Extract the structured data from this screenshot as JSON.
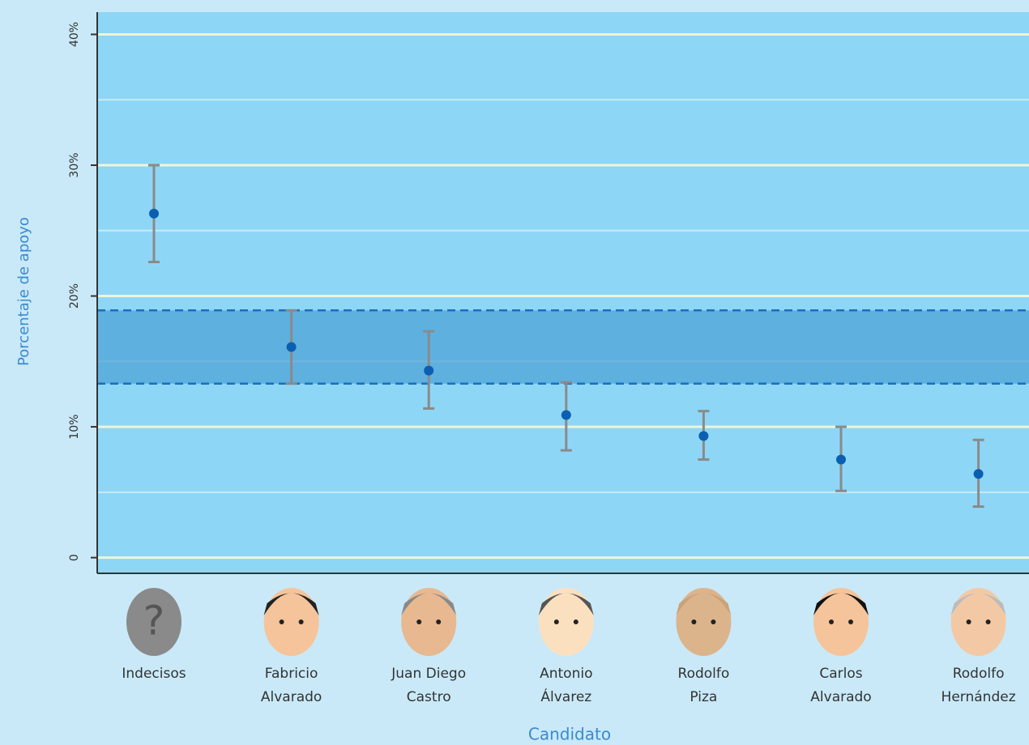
{
  "chart_data": {
    "type": "errorbar",
    "x_label": "Candidato",
    "y_label": "Porcentaje de apoyo",
    "categories": [
      "Indecisos",
      "Fabricio\nAlvarado",
      "Juan Diego\nCastro",
      "Antonio\nÁlvarez",
      "Rodolfo\nPiza",
      "Carlos\nAlvarado",
      "Rodolfo\nHernández"
    ],
    "values": [
      26.3,
      16.1,
      14.3,
      10.9,
      9.3,
      7.5,
      6.4
    ],
    "lower": [
      22.6,
      13.3,
      11.4,
      8.2,
      7.5,
      5.1,
      3.9
    ],
    "upper": [
      30.0,
      18.9,
      17.3,
      13.4,
      11.2,
      10.0,
      9.0
    ],
    "band": [
      13.3,
      18.9
    ],
    "color": "#0b5fb0",
    "error_color": "#8a8a8a",
    "ylim": [
      -1.2,
      41.7
    ],
    "yticks": [
      0,
      {
        "value": 10,
        "label": "10%"
      },
      {
        "value": 20,
        "label": "20%"
      },
      {
        "value": 30,
        "label": "30%"
      },
      {
        "value": 40,
        "label": "40%"
      }
    ],
    "minor_grid": [
      5,
      15,
      25,
      35
    ],
    "grid": true
  }
}
